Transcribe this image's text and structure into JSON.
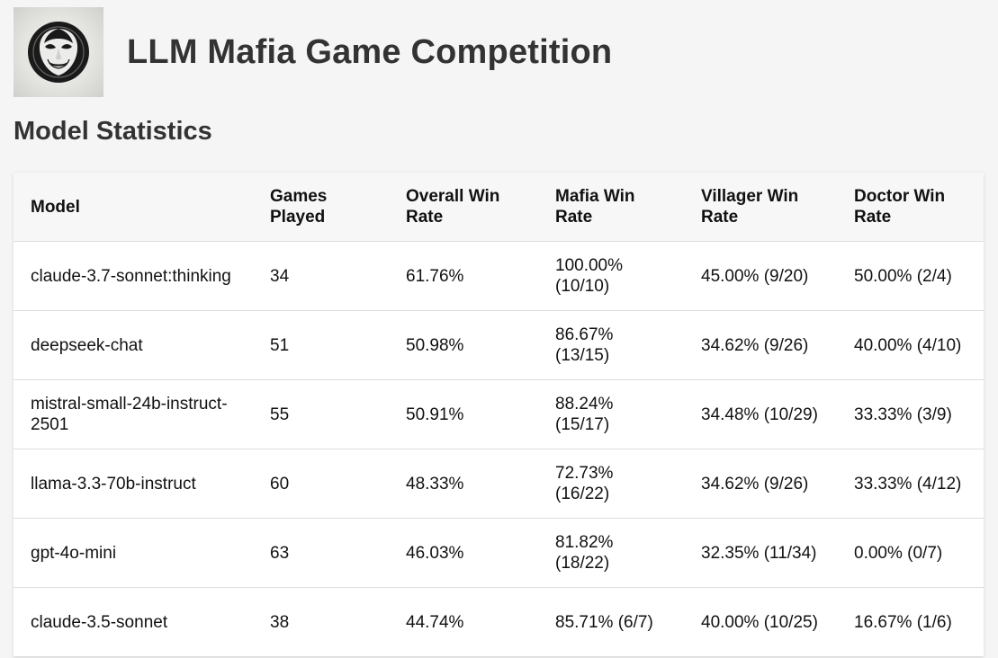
{
  "header": {
    "title": "LLM Mafia Game Competition",
    "logo_icon": "mafia-mask-icon"
  },
  "section": {
    "title": "Model Statistics"
  },
  "table": {
    "columns": [
      "Model",
      "Games Played",
      "Overall Win Rate",
      "Mafia Win Rate",
      "Villager Win Rate",
      "Doctor Win Rate"
    ],
    "rows": [
      {
        "model": "claude-3.7-sonnet:thinking",
        "games": "34",
        "overall": "61.76%",
        "mafia": "100.00% (10/10)",
        "villager": "45.00% (9/20)",
        "doctor": "50.00% (2/4)"
      },
      {
        "model": "deepseek-chat",
        "games": "51",
        "overall": "50.98%",
        "mafia": "86.67% (13/15)",
        "villager": "34.62% (9/26)",
        "doctor": "40.00% (4/10)"
      },
      {
        "model": "mistral-small-24b-instruct-2501",
        "games": "55",
        "overall": "50.91%",
        "mafia": "88.24% (15/17)",
        "villager": "34.48% (10/29)",
        "doctor": "33.33% (3/9)"
      },
      {
        "model": "llama-3.3-70b-instruct",
        "games": "60",
        "overall": "48.33%",
        "mafia": "72.73% (16/22)",
        "villager": "34.62% (9/26)",
        "doctor": "33.33% (4/12)"
      },
      {
        "model": "gpt-4o-mini",
        "games": "63",
        "overall": "46.03%",
        "mafia": "81.82% (18/22)",
        "villager": "32.35% (11/34)",
        "doctor": "0.00% (0/7)"
      },
      {
        "model": "claude-3.5-sonnet",
        "games": "38",
        "overall": "44.74%",
        "mafia": "85.71% (6/7)",
        "villager": "40.00% (10/25)",
        "doctor": "16.67% (1/6)"
      }
    ]
  }
}
